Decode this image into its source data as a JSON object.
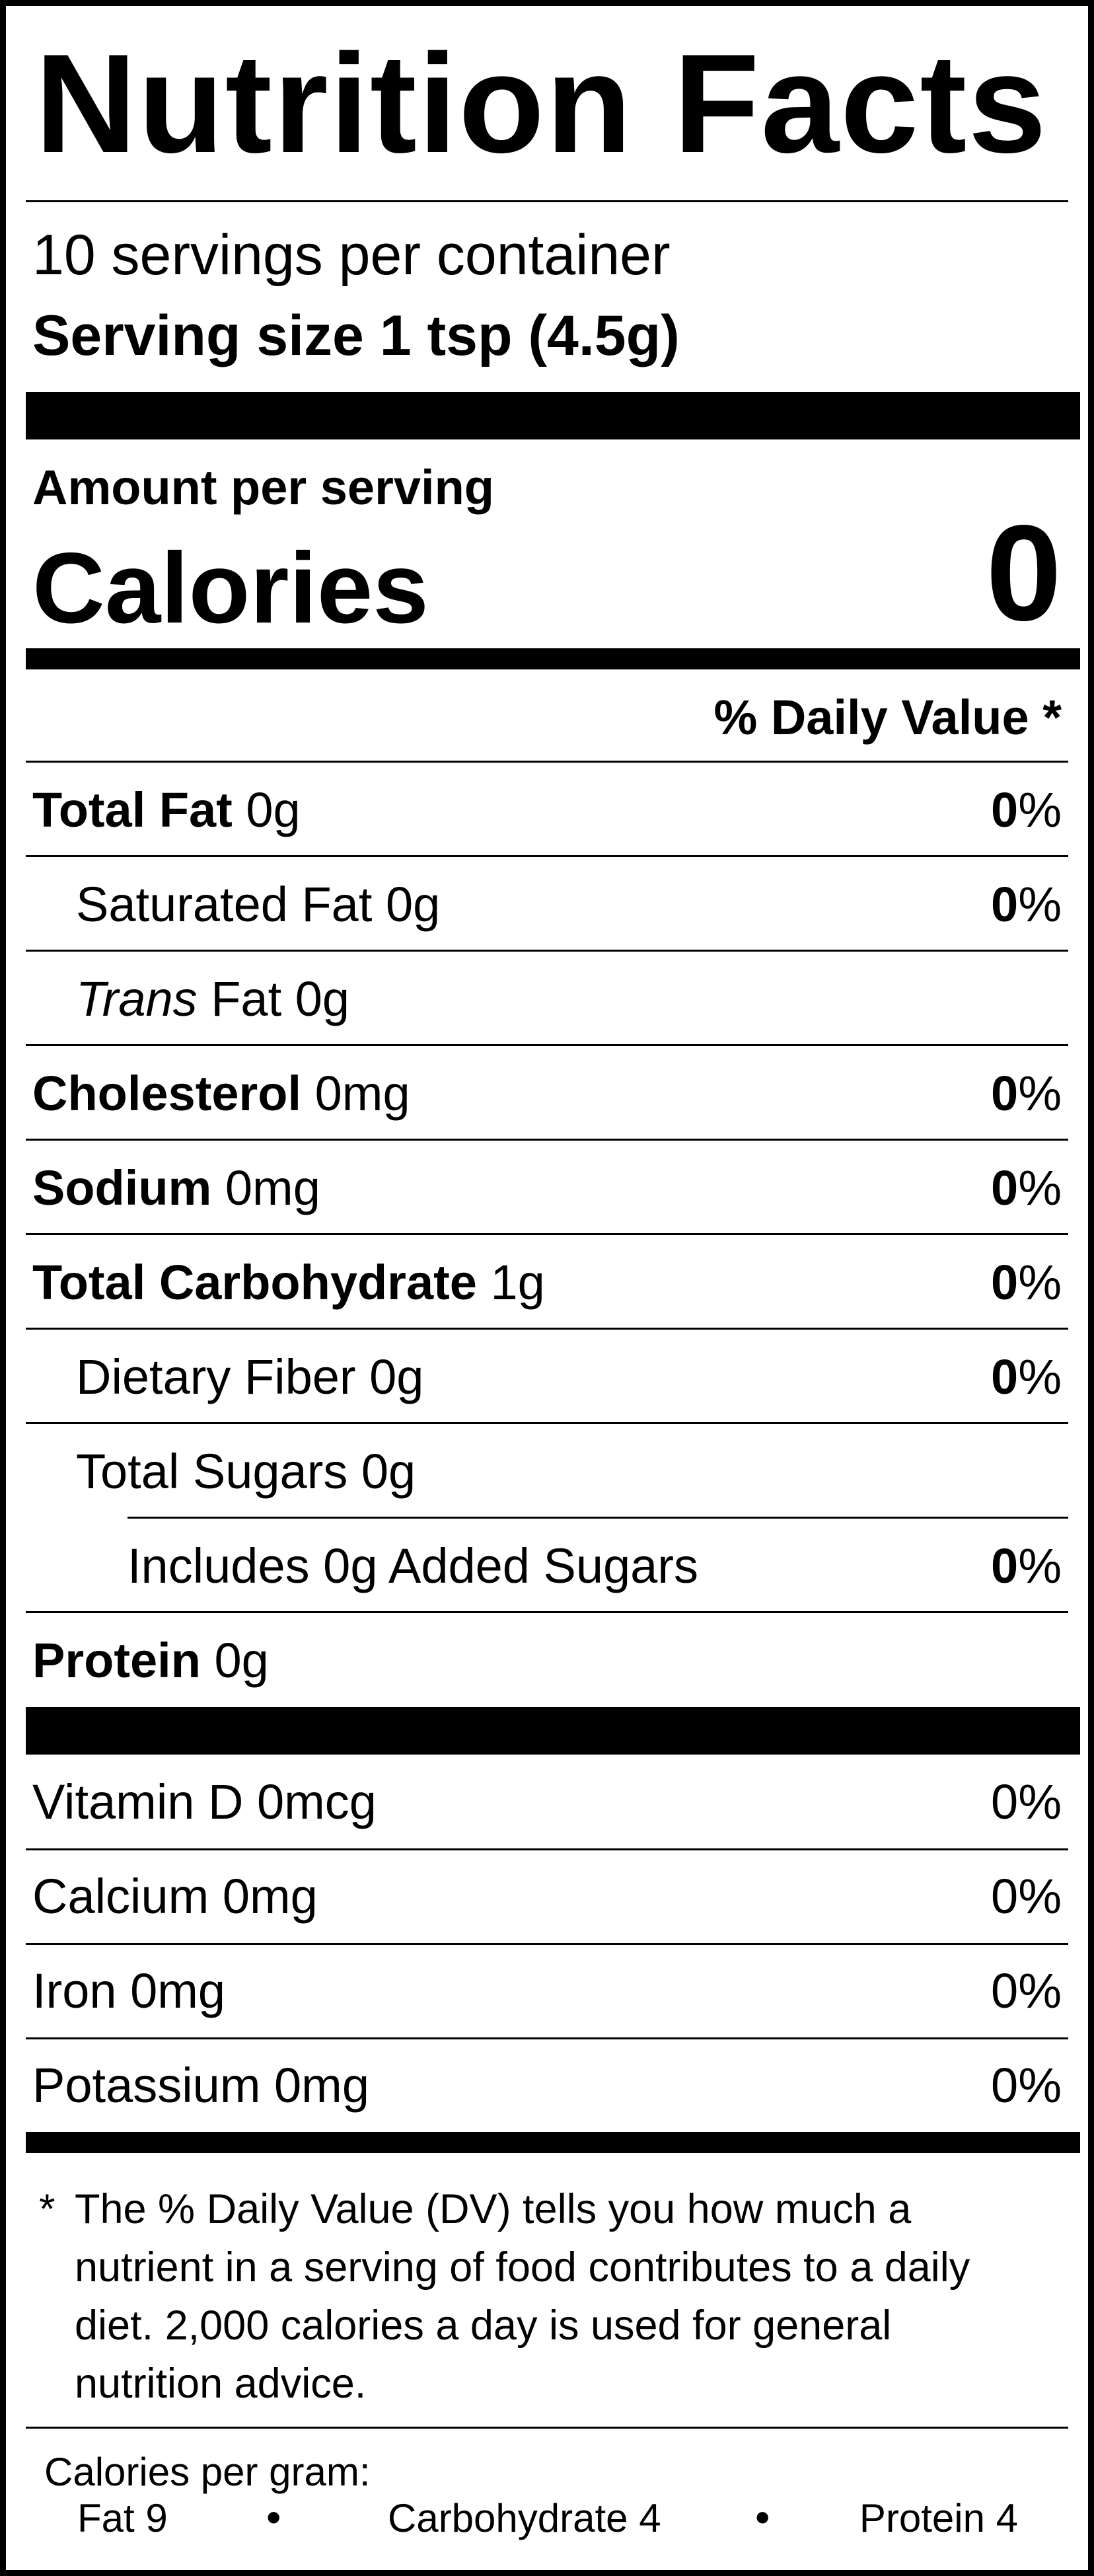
{
  "title": "Nutrition Facts",
  "servings_per_container": "10 servings per container",
  "serving_size_label": "Serving size",
  "serving_size_value": "1 tsp (4.5g)",
  "amount_per_serving": "Amount per serving",
  "calories_label": "Calories",
  "calories_value": "0",
  "daily_value_header": "% Daily Value *",
  "nutrients": {
    "total_fat": {
      "name": "Total Fat",
      "amount": "0g",
      "dv_num": "0",
      "dv_pct": "%"
    },
    "saturated_fat": {
      "name": "Saturated Fat",
      "amount": "0g",
      "dv_num": "0",
      "dv_pct": "%"
    },
    "trans_fat": {
      "name_italic": "Trans",
      "name": "Fat",
      "amount": "0g"
    },
    "cholesterol": {
      "name": "Cholesterol",
      "amount": "0mg",
      "dv_num": "0",
      "dv_pct": "%"
    },
    "sodium": {
      "name": "Sodium",
      "amount": "0mg",
      "dv_num": "0",
      "dv_pct": "%"
    },
    "total_carbohydrate": {
      "name": "Total Carbohydrate",
      "amount": "1g",
      "dv_num": "0",
      "dv_pct": "%"
    },
    "dietary_fiber": {
      "name": "Dietary Fiber",
      "amount": "0g",
      "dv_num": "0",
      "dv_pct": "%"
    },
    "total_sugars": {
      "name": "Total Sugars",
      "amount": "0g"
    },
    "added_sugars": {
      "text": "Includes 0g Added Sugars",
      "dv_num": "0",
      "dv_pct": "%"
    },
    "protein": {
      "name": "Protein",
      "amount": "0g"
    }
  },
  "vitamins": [
    {
      "text": "Vitamin D 0mcg",
      "dv": "0%"
    },
    {
      "text": "Calcium 0mg",
      "dv": "0%"
    },
    {
      "text": "Iron 0mg",
      "dv": "0%"
    },
    {
      "text": "Potassium 0mg",
      "dv": "0%"
    }
  ],
  "footnote": {
    "star": "*",
    "text": "The % Daily Value (DV) tells you how much a nutrient in a serving of food contributes to a daily diet. 2,000 calories a day is used for general nutrition advice."
  },
  "calories_per_gram": {
    "label": "Calories per gram:",
    "fat": "Fat 9",
    "carbohydrate": "Carbohydrate 4",
    "protein": "Protein 4",
    "separator": "•"
  }
}
